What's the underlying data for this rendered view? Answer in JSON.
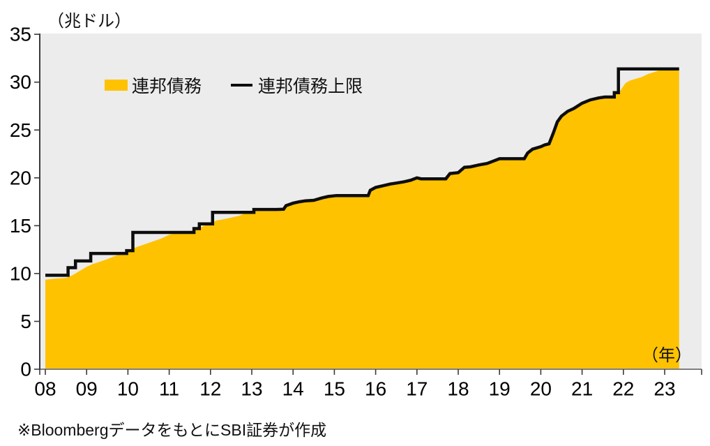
{
  "y_axis_unit": "（兆ドル）",
  "x_axis_unit": "（年）",
  "footnote": "※BloombergデータをもとにSBI証券が作成",
  "legend": {
    "items": [
      {
        "label": "連邦債務",
        "type": "area",
        "color": "#FFC200"
      },
      {
        "label": "連邦債務上限",
        "type": "line",
        "color": "#0d0d0d"
      }
    ]
  },
  "chart_data": {
    "type": "area",
    "title": "",
    "xlabel": "（年）",
    "ylabel": "（兆ドル）",
    "unit": "trillion USD",
    "ylim": [
      0,
      35
    ],
    "xlim": [
      2007.86,
      2023.9
    ],
    "grid": false,
    "legend_position": "top-left-inside",
    "plot_bg_color": "#ECECEC",
    "axis_line_color": "#3a3a3a",
    "baseline_color": "#7f7f7f",
    "y_ticks": [
      {
        "value": 0,
        "label": "0"
      },
      {
        "value": 5,
        "label": "5"
      },
      {
        "value": 10,
        "label": "10"
      },
      {
        "value": 15,
        "label": "15"
      },
      {
        "value": 20,
        "label": "20"
      },
      {
        "value": 25,
        "label": "25"
      },
      {
        "value": 30,
        "label": "30"
      },
      {
        "value": 35,
        "label": "35"
      }
    ],
    "x_ticks": [
      {
        "value": 2008,
        "label": "08"
      },
      {
        "value": 2009,
        "label": "09"
      },
      {
        "value": 2010,
        "label": "10"
      },
      {
        "value": 2011,
        "label": "11"
      },
      {
        "value": 2012,
        "label": "12"
      },
      {
        "value": 2013,
        "label": "13"
      },
      {
        "value": 2014,
        "label": "14"
      },
      {
        "value": 2015,
        "label": "15"
      },
      {
        "value": 2016,
        "label": "16"
      },
      {
        "value": 2017,
        "label": "17"
      },
      {
        "value": 2018,
        "label": "18"
      },
      {
        "value": 2019,
        "label": "19"
      },
      {
        "value": 2020,
        "label": "20"
      },
      {
        "value": 2021,
        "label": "21"
      },
      {
        "value": 2022,
        "label": "22"
      },
      {
        "value": 2023,
        "label": "23"
      }
    ],
    "series": [
      {
        "name": "連邦債務",
        "type": "area",
        "color": "#FFC200",
        "points": [
          [
            2008.0,
            9.35
          ],
          [
            2008.2,
            9.45
          ],
          [
            2008.35,
            9.5
          ],
          [
            2008.5,
            9.55
          ],
          [
            2008.65,
            9.8
          ],
          [
            2008.8,
            10.2
          ],
          [
            2009.0,
            10.7
          ],
          [
            2009.15,
            11.0
          ],
          [
            2009.3,
            11.2
          ],
          [
            2009.5,
            11.5
          ],
          [
            2009.7,
            11.85
          ],
          [
            2009.85,
            12.05
          ],
          [
            2010.0,
            12.4
          ],
          [
            2010.2,
            12.75
          ],
          [
            2010.4,
            13.05
          ],
          [
            2010.6,
            13.35
          ],
          [
            2010.8,
            13.65
          ],
          [
            2011.0,
            14.05
          ],
          [
            2011.2,
            14.25
          ],
          [
            2011.35,
            14.3
          ],
          [
            2011.6,
            14.34
          ],
          [
            2011.7,
            14.7
          ],
          [
            2011.85,
            15.0
          ],
          [
            2012.0,
            15.25
          ],
          [
            2012.15,
            15.55
          ],
          [
            2012.3,
            15.65
          ],
          [
            2012.5,
            15.85
          ],
          [
            2012.7,
            16.05
          ],
          [
            2012.85,
            16.3
          ],
          [
            2013.0,
            16.45
          ],
          [
            2013.15,
            16.7
          ],
          [
            2013.3,
            16.74
          ],
          [
            2013.6,
            16.74
          ],
          [
            2013.77,
            16.75
          ],
          [
            2013.83,
            17.05
          ],
          [
            2014.0,
            17.3
          ],
          [
            2014.15,
            17.45
          ],
          [
            2014.3,
            17.55
          ],
          [
            2014.5,
            17.6
          ],
          [
            2014.7,
            17.85
          ],
          [
            2014.85,
            18.0
          ],
          [
            2015.0,
            18.1
          ],
          [
            2015.15,
            18.15
          ],
          [
            2015.5,
            18.15
          ],
          [
            2015.82,
            18.15
          ],
          [
            2015.87,
            18.65
          ],
          [
            2016.0,
            18.95
          ],
          [
            2016.2,
            19.15
          ],
          [
            2016.35,
            19.3
          ],
          [
            2016.5,
            19.4
          ],
          [
            2016.7,
            19.55
          ],
          [
            2016.85,
            19.7
          ],
          [
            2017.0,
            19.95
          ],
          [
            2017.1,
            19.85
          ],
          [
            2017.4,
            19.85
          ],
          [
            2017.72,
            19.85
          ],
          [
            2017.8,
            20.4
          ],
          [
            2018.0,
            20.5
          ],
          [
            2018.15,
            21.05
          ],
          [
            2018.3,
            21.1
          ],
          [
            2018.5,
            21.3
          ],
          [
            2018.7,
            21.45
          ],
          [
            2018.85,
            21.7
          ],
          [
            2019.0,
            21.95
          ],
          [
            2019.1,
            22.0
          ],
          [
            2019.5,
            22.0
          ],
          [
            2019.6,
            22.0
          ],
          [
            2019.68,
            22.55
          ],
          [
            2019.8,
            22.95
          ],
          [
            2020.0,
            23.2
          ],
          [
            2020.1,
            23.4
          ],
          [
            2020.2,
            23.5
          ],
          [
            2020.3,
            24.6
          ],
          [
            2020.4,
            25.8
          ],
          [
            2020.5,
            26.4
          ],
          [
            2020.65,
            26.9
          ],
          [
            2020.8,
            27.2
          ],
          [
            2021.0,
            27.75
          ],
          [
            2021.2,
            28.1
          ],
          [
            2021.4,
            28.3
          ],
          [
            2021.55,
            28.42
          ],
          [
            2021.75,
            28.43
          ],
          [
            2021.8,
            28.85
          ],
          [
            2021.9,
            28.9
          ],
          [
            2021.97,
            29.4
          ],
          [
            2022.05,
            29.9
          ],
          [
            2022.15,
            30.15
          ],
          [
            2022.3,
            30.35
          ],
          [
            2022.45,
            30.55
          ],
          [
            2022.6,
            30.85
          ],
          [
            2022.75,
            31.05
          ],
          [
            2022.9,
            31.3
          ],
          [
            2023.0,
            31.42
          ],
          [
            2023.15,
            31.44
          ],
          [
            2023.35,
            31.45
          ]
        ]
      },
      {
        "name": "連邦債務上限",
        "type": "step-line",
        "color": "#0d0d0d",
        "stroke_width": 4.5,
        "points": [
          [
            2008.0,
            9.815
          ],
          [
            2008.55,
            9.815
          ],
          [
            2008.55,
            10.615
          ],
          [
            2008.73,
            10.615
          ],
          [
            2008.73,
            11.315
          ],
          [
            2009.1,
            11.315
          ],
          [
            2009.1,
            12.104
          ],
          [
            2009.97,
            12.104
          ],
          [
            2009.97,
            12.394
          ],
          [
            2010.12,
            12.394
          ],
          [
            2010.12,
            14.294
          ],
          [
            2011.6,
            14.294
          ],
          [
            2011.6,
            14.694
          ],
          [
            2011.73,
            14.694
          ],
          [
            2011.73,
            15.194
          ],
          [
            2012.05,
            15.194
          ],
          [
            2012.05,
            16.394
          ],
          [
            2013.05,
            16.394
          ],
          [
            2013.05,
            16.699
          ],
          [
            2013.6,
            16.699
          ],
          [
            2013.77,
            16.72
          ],
          [
            2013.83,
            17.1
          ],
          [
            2014.0,
            17.35
          ],
          [
            2014.15,
            17.5
          ],
          [
            2014.3,
            17.6
          ],
          [
            2014.5,
            17.65
          ],
          [
            2014.7,
            17.9
          ],
          [
            2014.85,
            18.05
          ],
          [
            2015.05,
            18.15
          ],
          [
            2015.4,
            18.15
          ],
          [
            2015.82,
            18.15
          ],
          [
            2015.87,
            18.7
          ],
          [
            2016.0,
            19.0
          ],
          [
            2016.2,
            19.2
          ],
          [
            2016.35,
            19.35
          ],
          [
            2016.5,
            19.45
          ],
          [
            2016.7,
            19.6
          ],
          [
            2016.85,
            19.75
          ],
          [
            2017.0,
            20.0
          ],
          [
            2017.1,
            19.9
          ],
          [
            2017.7,
            19.9
          ],
          [
            2017.8,
            20.45
          ],
          [
            2018.0,
            20.55
          ],
          [
            2018.15,
            21.1
          ],
          [
            2018.3,
            21.15
          ],
          [
            2018.5,
            21.35
          ],
          [
            2018.7,
            21.5
          ],
          [
            2018.85,
            21.75
          ],
          [
            2019.0,
            22.0
          ],
          [
            2019.6,
            22.0
          ],
          [
            2019.68,
            22.6
          ],
          [
            2019.8,
            23.0
          ],
          [
            2020.0,
            23.25
          ],
          [
            2020.1,
            23.45
          ],
          [
            2020.2,
            23.55
          ],
          [
            2020.3,
            24.65
          ],
          [
            2020.4,
            25.85
          ],
          [
            2020.5,
            26.45
          ],
          [
            2020.65,
            26.95
          ],
          [
            2020.8,
            27.25
          ],
          [
            2021.0,
            27.8
          ],
          [
            2021.2,
            28.15
          ],
          [
            2021.4,
            28.35
          ],
          [
            2021.55,
            28.45
          ],
          [
            2021.78,
            28.45
          ],
          [
            2021.78,
            28.9
          ],
          [
            2021.88,
            28.9
          ],
          [
            2021.88,
            31.381
          ],
          [
            2023.35,
            31.381
          ]
        ]
      }
    ]
  }
}
